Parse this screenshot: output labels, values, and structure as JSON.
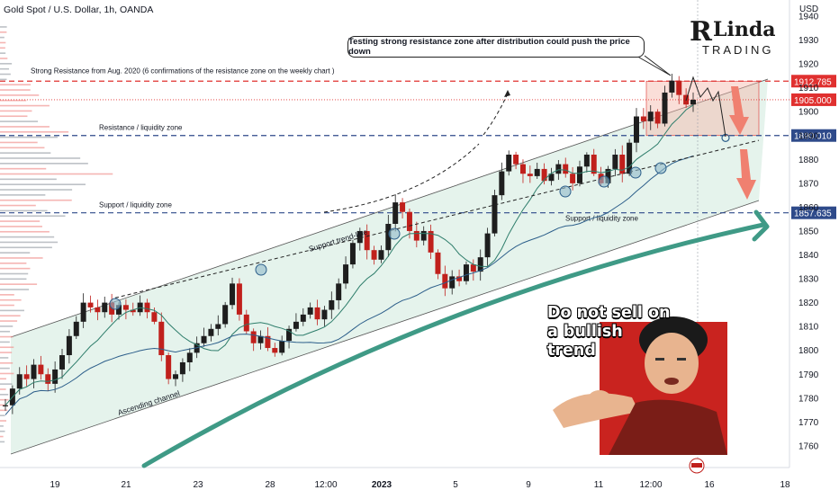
{
  "chart_data": {
    "type": "candlestick",
    "title": "Gold Spot / U.S. Dollar, 1h, OANDA",
    "currency": "USD",
    "y_ticks": [
      1760,
      1770,
      1780,
      1790,
      1800,
      1810,
      1820,
      1830,
      1840,
      1850,
      1860,
      1870,
      1880,
      1890,
      1900,
      1910,
      1920,
      1930,
      1940
    ],
    "x_ticks": [
      "19",
      "21",
      "23",
      "28",
      "12:00",
      "2023",
      "5",
      "9",
      "11",
      "12:00",
      "16",
      "18"
    ],
    "price_levels": [
      {
        "label": "1912.785",
        "price": 1912.785,
        "style": "dashed",
        "color": "#e0302f",
        "name": "Strong Resistance from Aug. 2020 (6 confirmations of the resistance zone on the weekly chart )"
      },
      {
        "label": "1905.000",
        "price": 1905.0,
        "style": "dotted",
        "color": "#e0302f",
        "name": ""
      },
      {
        "label": "1890.010",
        "price": 1890.01,
        "style": "dashed",
        "color": "#2e4a8a",
        "name": "Resistance / liquidity zone"
      },
      {
        "label": "1857.635",
        "price": 1857.635,
        "style": "dashed",
        "color": "#2e4a8a",
        "name": "Support / liquidity zone"
      }
    ],
    "annotations": {
      "callout": "Testing strong resistance zone after distribution could push the price down",
      "channel": "Ascending channel",
      "trendline": "Support trend-line",
      "meme": "Do not sell on a bullish trend"
    },
    "watermark": {
      "line1": "Linda",
      "line2": "TRADING"
    },
    "price_path": [
      1777,
      1784,
      1790,
      1788,
      1794,
      1790,
      1786,
      1792,
      1798,
      1806,
      1812,
      1820,
      1818,
      1816,
      1820,
      1815,
      1819,
      1817,
      1816,
      1820,
      1816,
      1812,
      1798,
      1788,
      1790,
      1795,
      1799,
      1803,
      1806,
      1809,
      1811,
      1819,
      1828,
      1815,
      1808,
      1803,
      1806,
      1801,
      1799,
      1804,
      1809,
      1812,
      1815,
      1818,
      1813,
      1817,
      1821,
      1828,
      1836,
      1845,
      1850,
      1842,
      1838,
      1842,
      1853,
      1862,
      1858,
      1850,
      1846,
      1850,
      1841,
      1832,
      1826,
      1831,
      1829,
      1836,
      1833,
      1839,
      1849,
      1865,
      1875,
      1882,
      1878,
      1874,
      1873,
      1876,
      1871,
      1874,
      1878,
      1874,
      1870,
      1877,
      1882,
      1874,
      1870,
      1876,
      1882,
      1874,
      1887,
      1898,
      1896,
      1900,
      1895,
      1908,
      1913,
      1907,
      1903,
      1905
    ]
  },
  "header": {
    "title": "Gold Spot / U.S. Dollar, 1h, OANDA",
    "currency": "USD"
  },
  "callout_text": "Testing strong resistance zone after distribution could push the price down",
  "logo": {
    "mark": "R",
    "line1": "Linda",
    "line2": "TRADING"
  },
  "meme": {
    "line1": "Do not sell on",
    "line2": "a bullish",
    "line3": "trend"
  }
}
